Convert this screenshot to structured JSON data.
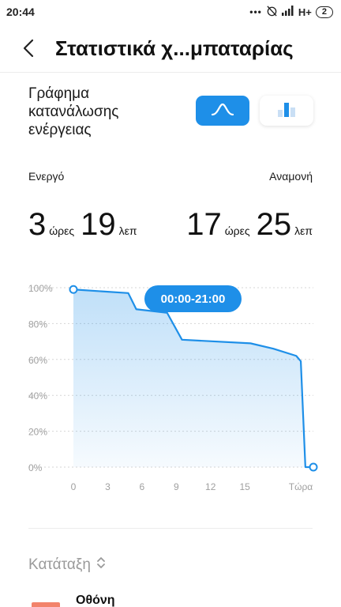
{
  "status_bar": {
    "time": "20:44",
    "dots": "•••",
    "network": "H+",
    "battery": "2"
  },
  "header": {
    "title": "Στατιστικά χ...μπαταρίας"
  },
  "graph_type": {
    "label": "Γράφημα κατανάλωσης ενέργειας",
    "options": [
      "line-graph-icon",
      "bar-graph-icon"
    ],
    "selected": "line"
  },
  "usage": {
    "active_label": "Ενεργό",
    "active_hours": "3",
    "active_hours_unit": "ώρες",
    "active_minutes": "19",
    "active_minutes_unit": "λεπ",
    "standby_label": "Αναμονή",
    "standby_hours": "17",
    "standby_hours_unit": "ώρες",
    "standby_minutes": "25",
    "standby_minutes_unit": "λεπ"
  },
  "chart_data": {
    "type": "area",
    "x_ticks": [
      "0",
      "3",
      "6",
      "9",
      "12",
      "15",
      "Τώρα"
    ],
    "y_ticks": [
      "100%",
      "80%",
      "60%",
      "40%",
      "20%",
      "0%"
    ],
    "xlim": [
      0,
      21
    ],
    "ylim": [
      0,
      100
    ],
    "grid": true,
    "tooltip": "00:00-21:00",
    "series": [
      {
        "x": [
          0,
          4.8,
          5.5,
          8.2,
          9.5,
          15.5,
          17.5,
          19.5,
          19.9,
          20.3,
          21
        ],
        "y": [
          99,
          97,
          88,
          86,
          71,
          69,
          66,
          62,
          59,
          0,
          0
        ]
      }
    ],
    "accent": "#1e8fe8"
  },
  "ranking": {
    "sort_label": "Κατάταξη",
    "items": [
      {
        "label": "Οθόνη",
        "color": "#f2836b"
      }
    ]
  }
}
